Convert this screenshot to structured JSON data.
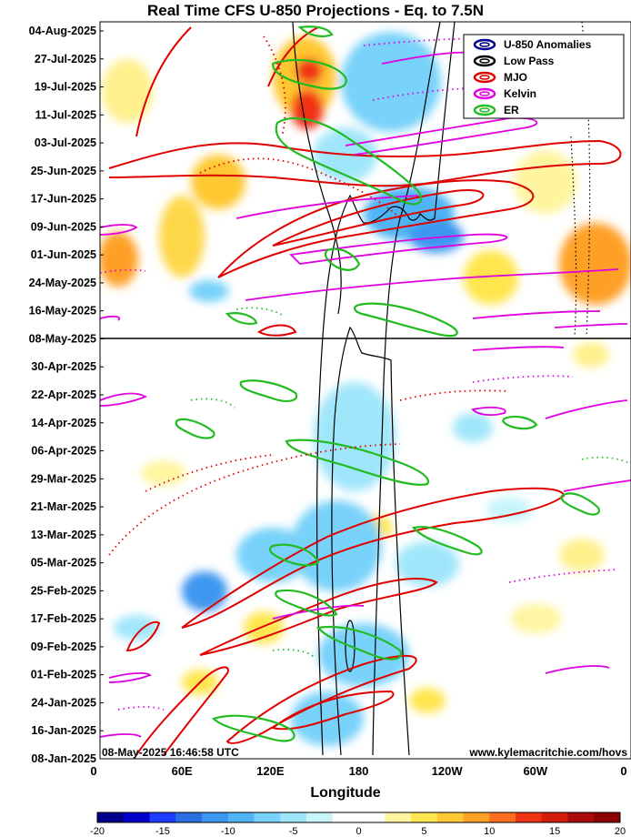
{
  "chart_data": {
    "type": "heatmap",
    "title": "Real Time CFS U-850 Projections - Eq. to 7.5N",
    "xlabel": "Longitude",
    "ylabel": "",
    "x_ticks": [
      "0",
      "60E",
      "120E",
      "180",
      "120W",
      "60W",
      "0"
    ],
    "x_range_deg": [
      0,
      360
    ],
    "y_ticks": [
      "04-Aug-2025",
      "27-Jul-2025",
      "19-Jul-2025",
      "11-Jul-2025",
      "03-Jul-2025",
      "25-Jun-2025",
      "17-Jun-2025",
      "09-Jun-2025",
      "01-Jun-2025",
      "24-May-2025",
      "16-May-2025",
      "08-May-2025",
      "30-Apr-2025",
      "22-Apr-2025",
      "14-Apr-2025",
      "06-Apr-2025",
      "29-Mar-2025",
      "21-Mar-2025",
      "13-Mar-2025",
      "05-Mar-2025",
      "25-Feb-2025",
      "17-Feb-2025",
      "09-Feb-2025",
      "01-Feb-2025",
      "24-Jan-2025",
      "16-Jan-2025",
      "08-Jan-2025"
    ],
    "y_range": [
      "08-Jan-2025",
      "04-Aug-2025"
    ],
    "current_date_line": "08-May-2025",
    "legend_position": "top-right",
    "legend": [
      {
        "name": "U-850 Anomalies",
        "color": "#00008b"
      },
      {
        "name": "Low Pass",
        "color": "#000000"
      },
      {
        "name": "MJO",
        "color": "#e00000"
      },
      {
        "name": "Kelvin",
        "color": "#e000e0"
      },
      {
        "name": "ER",
        "color": "#22bb22"
      }
    ],
    "colorbar": {
      "ticks": [
        "-20",
        "-15",
        "-10",
        "-5",
        "0",
        "5",
        "10",
        "15",
        "20"
      ],
      "range": [
        -20,
        20
      ],
      "colors": [
        "#00008b",
        "#0000cd",
        "#1e3cff",
        "#2a6fe0",
        "#3c96f0",
        "#50b4f5",
        "#78d2fa",
        "#a0e6fa",
        "#c8f5fa",
        "#ffffff",
        "#ffffff",
        "#fff5a0",
        "#ffe650",
        "#ffc832",
        "#ffa028",
        "#ff6e1e",
        "#f03214",
        "#d21e0a",
        "#aa0a0a",
        "#8b0000"
      ]
    },
    "timestamp": "08-May-2025 16:46:58 UTC",
    "source": "www.kylemacritchie.com/hovs"
  },
  "colors": {
    "mjo": "#e00000",
    "kelvin": "#e000e0",
    "er": "#22bb22",
    "lowpass": "#000000",
    "anomaly_legend": "#00008b"
  }
}
